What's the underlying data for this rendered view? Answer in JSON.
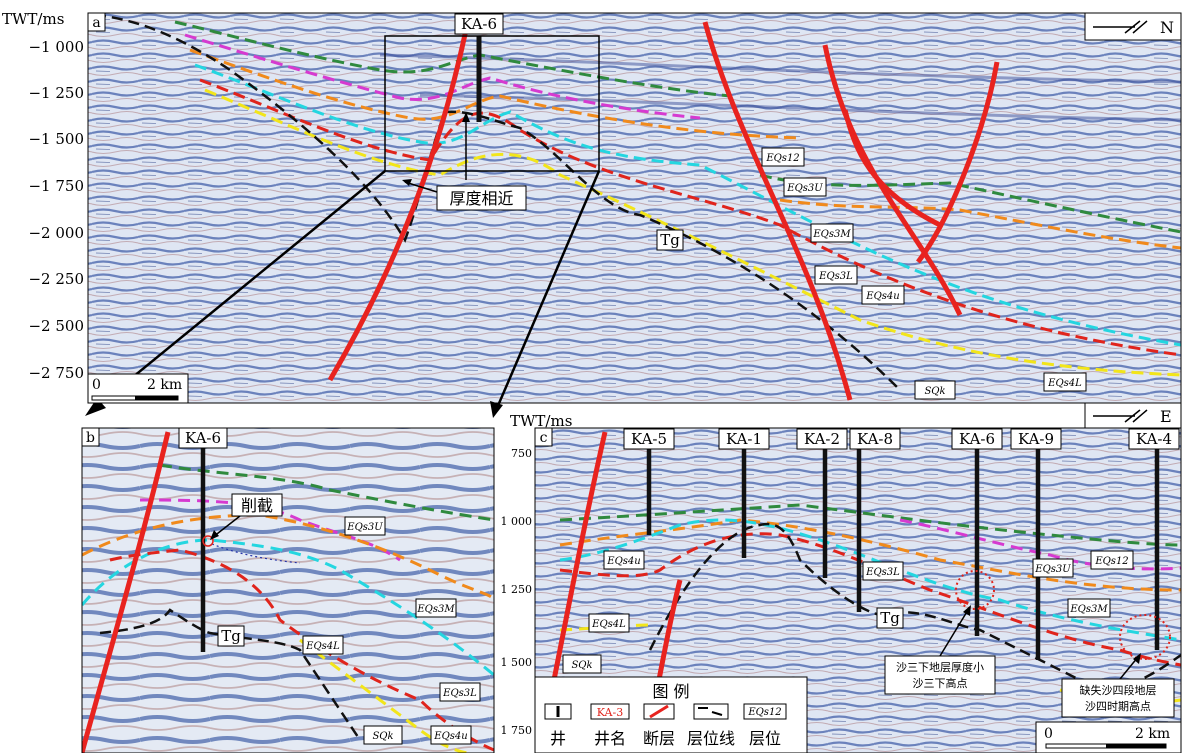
{
  "panel_a": {
    "label": "a",
    "axis_title": "TWT/ms",
    "ticks": [
      "−1 000",
      "−1 250",
      "−1 500",
      "−1 750",
      "−2 000",
      "−2 250",
      "−2 500",
      "−2 750"
    ],
    "well": "KA-6",
    "annotation": "厚度相近",
    "tg": "Tg",
    "north": "N",
    "scale_zero": "0",
    "scale_label": "2 km",
    "horizons": [
      "EQs12",
      "EQs3U",
      "EQs3M",
      "EQs3L",
      "EQs4u",
      "SQk",
      "EQs4L"
    ]
  },
  "panel_b": {
    "label": "b",
    "well": "KA-6",
    "annotation": "削截",
    "tg": "Tg",
    "horizons": [
      "EQs3U",
      "EQs3M",
      "EQs4L",
      "EQs3L",
      "SQk",
      "EQs4u"
    ]
  },
  "panel_c": {
    "label": "c",
    "axis_title": "TWT/ms",
    "ticks": [
      "750",
      "1 000",
      "1 250",
      "1 500",
      "1 750"
    ],
    "wells": [
      "KA-5",
      "KA-1",
      "KA-2",
      "KA-8",
      "KA-6",
      "KA-9",
      "KA-4"
    ],
    "east": "E",
    "tg": "Tg",
    "note1_line1": "沙三下地层厚度小",
    "note1_line2": "沙三下高点",
    "note2_line1": "缺失沙四段地层",
    "note2_line2": "沙四时期高点",
    "scale_zero": "0",
    "scale_label": "2 km",
    "horizons": [
      "EQs4u",
      "EQs3L",
      "EQs3U",
      "EQs12",
      "EQs3M",
      "EQs4L",
      "SQk"
    ]
  },
  "legend": {
    "title": "图 例",
    "items": [
      "井",
      "井名",
      "断层",
      "层位线",
      "层位"
    ],
    "sample_well_name": "KA-3",
    "sample_horizon": "EQs12"
  },
  "colors": {
    "fault": "#e8231f",
    "green": "#2f8a3e",
    "magenta": "#d63ad0",
    "orange": "#f08a1c",
    "cyan": "#24d6e0",
    "red": "#e0241c",
    "yellow": "#f2e51a",
    "black": "#111111",
    "seismic_blue": "#5b78b8"
  }
}
